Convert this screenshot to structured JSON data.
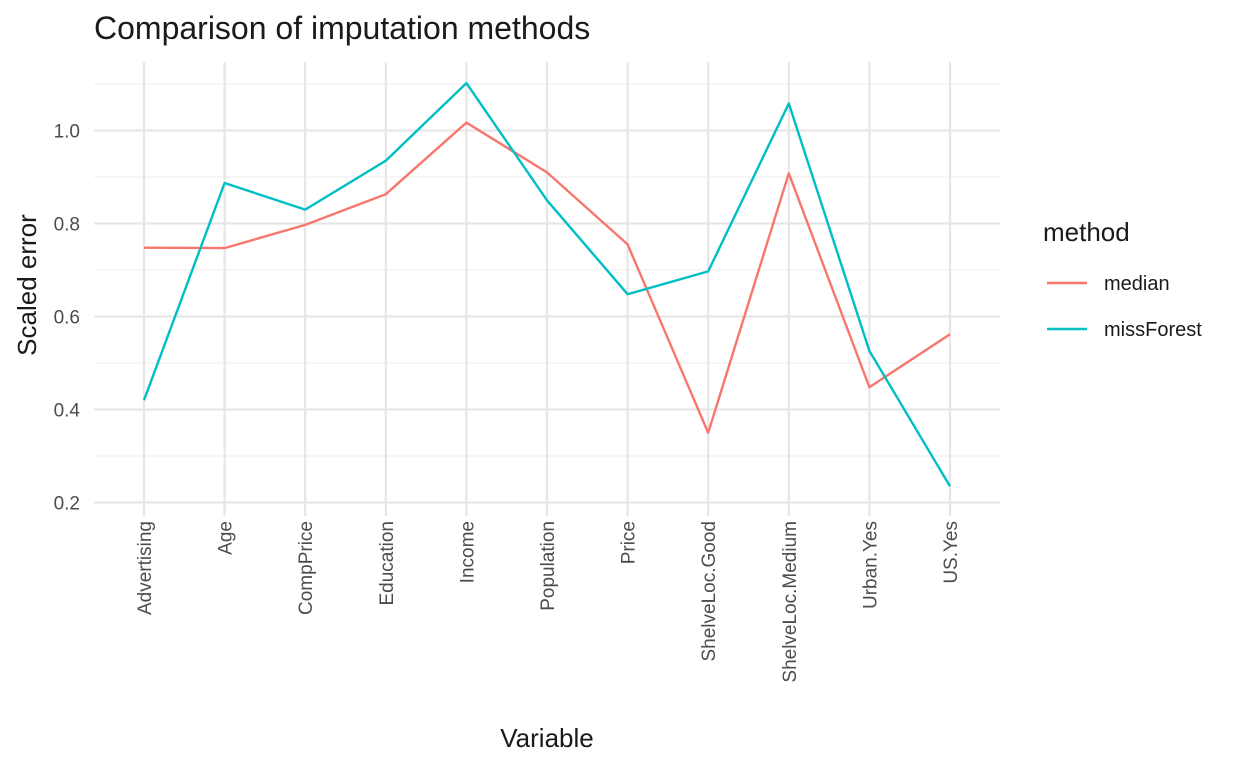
{
  "chart_data": {
    "type": "line",
    "title": "Comparison of imputation methods",
    "xlabel": "Variable",
    "ylabel": "Scaled error",
    "categories": [
      "Advertising",
      "Age",
      "CompPrice",
      "Education",
      "Income",
      "Population",
      "Price",
      "ShelveLoc.Good",
      "ShelveLoc.Medium",
      "Urban.Yes",
      "US.Yes"
    ],
    "y_ticks": [
      "0.2",
      "0.4",
      "0.6",
      "0.8",
      "1.0"
    ],
    "ylim": [
      0.19,
      1.13
    ],
    "grid": true,
    "legend_title": "method",
    "legend_position": "right",
    "series": [
      {
        "name": "median",
        "color": "#F8766D",
        "values": [
          0.748,
          0.747,
          0.797,
          0.863,
          1.017,
          0.91,
          0.755,
          0.35,
          0.908,
          0.448,
          0.562
        ]
      },
      {
        "name": "missForest",
        "color": "#00BFC4",
        "values": [
          0.42,
          0.887,
          0.83,
          0.935,
          1.102,
          0.85,
          0.648,
          0.697,
          1.058,
          0.526,
          0.235
        ]
      }
    ]
  }
}
